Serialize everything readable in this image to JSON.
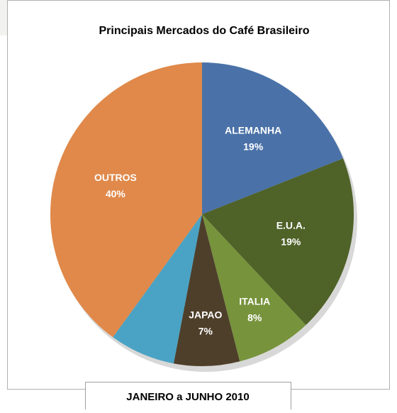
{
  "chart_data": {
    "type": "pie",
    "title": "Principais Mercados do Café Brasileiro",
    "subtitle": "JANEIRO a JUNHO 2010",
    "categories": [
      "ALEMANHA",
      "E.U.A.",
      "ITALIA",
      "JAPAO",
      null,
      "OUTROS"
    ],
    "values": [
      19,
      19,
      8,
      7,
      7,
      40
    ],
    "value_labels": [
      "19%",
      "19%",
      "8%",
      "7%",
      null,
      "40%"
    ],
    "colors": [
      "#4a72a8",
      "#4f6228",
      "#77933c",
      "#4e3f2b",
      "#4aa3c4",
      "#e0894a"
    ]
  }
}
